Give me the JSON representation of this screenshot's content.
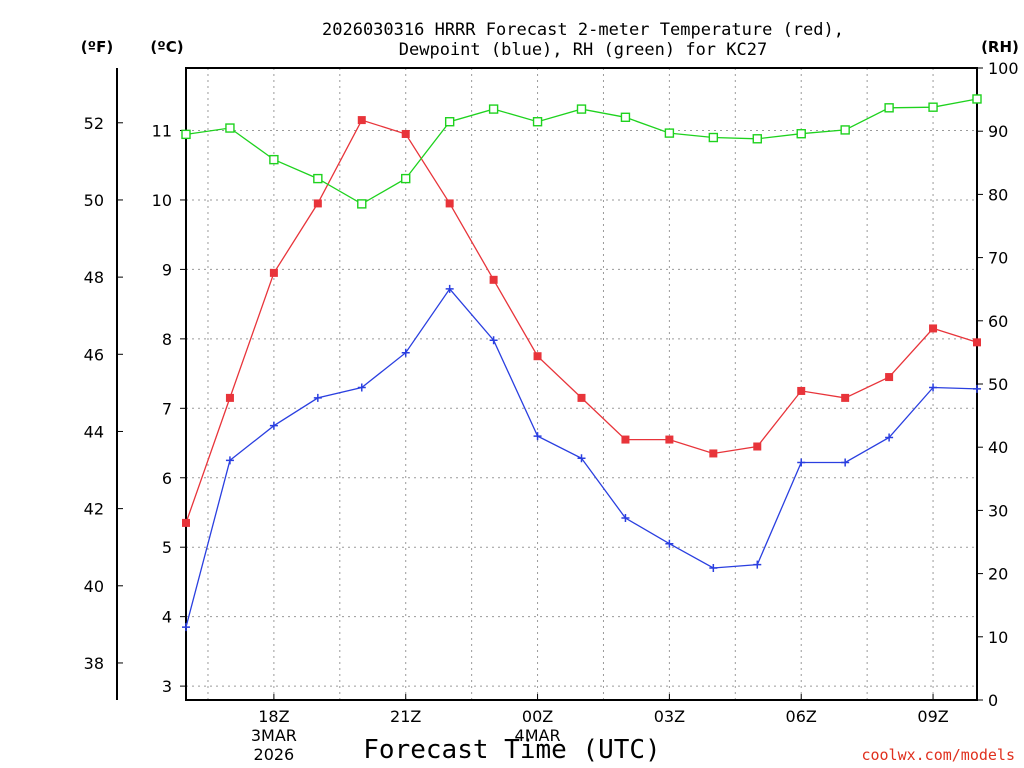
{
  "chart_data": {
    "type": "line",
    "title_line1": "2026030316 HRRR Forecast 2-meter Temperature (red),",
    "title_line2": "Dewpoint (blue), RH (green) for KC27",
    "xlabel": "Forecast Time (UTC)",
    "credit": "coolwx.com/models",
    "unit_f": "(ºF)",
    "unit_c": "(ºC)",
    "unit_rh": "(RH)",
    "x_hours": [
      16,
      17,
      18,
      19,
      20,
      21,
      22,
      23,
      24,
      25,
      26,
      27,
      28,
      29,
      30,
      31,
      32,
      33,
      34
    ],
    "x_range": [
      16,
      34
    ],
    "ylim_c": [
      2.8,
      11.9
    ],
    "ylim_rh": [
      0,
      100
    ],
    "fahrenheit_ticks": [
      "38",
      "40",
      "42",
      "44",
      "46",
      "48",
      "50",
      "52"
    ],
    "fahrenheit_values": [
      38,
      40,
      42,
      44,
      46,
      48,
      50,
      52
    ],
    "celsius_ticks": [
      "3",
      "4",
      "5",
      "6",
      "7",
      "8",
      "9",
      "10",
      "11"
    ],
    "celsius_values": [
      3,
      4,
      5,
      6,
      7,
      8,
      9,
      10,
      11
    ],
    "rh_ticks": [
      "0",
      "10",
      "20",
      "30",
      "40",
      "50",
      "60",
      "70",
      "80",
      "90",
      "100"
    ],
    "rh_values": [
      0,
      10,
      20,
      30,
      40,
      50,
      60,
      70,
      80,
      90,
      100
    ],
    "x_ticks": [
      {
        "hour": 18,
        "lines": [
          "18Z",
          "3MAR",
          "2026"
        ]
      },
      {
        "hour": 21,
        "lines": [
          "21Z"
        ]
      },
      {
        "hour": 24,
        "lines": [
          "00Z",
          "4MAR"
        ]
      },
      {
        "hour": 27,
        "lines": [
          "03Z"
        ]
      },
      {
        "hour": 30,
        "lines": [
          "06Z"
        ]
      },
      {
        "hour": 33,
        "lines": [
          "09Z"
        ]
      }
    ],
    "series": [
      {
        "name": "Temperature",
        "unit": "C",
        "color": "#e8343a",
        "marker": "filled-square",
        "values": [
          5.35,
          7.15,
          8.95,
          9.95,
          11.15,
          10.95,
          9.95,
          8.85,
          7.75,
          7.15,
          6.55,
          6.55,
          6.35,
          6.45,
          7.25,
          7.15,
          7.45,
          8.15,
          7.95
        ]
      },
      {
        "name": "Dewpoint",
        "unit": "C",
        "color": "#2a3fe0",
        "marker": "plus",
        "values": [
          3.85,
          6.25,
          6.75,
          7.15,
          7.3,
          7.8,
          8.72,
          7.98,
          6.6,
          6.28,
          5.42,
          5.05,
          4.7,
          4.75,
          6.22,
          6.22,
          6.58,
          7.3,
          7.28
        ]
      },
      {
        "name": "RH",
        "unit": "%",
        "color": "#1ed21e",
        "marker": "open-square",
        "values": [
          89.5,
          90.5,
          85.5,
          82.5,
          78.5,
          82.5,
          91.5,
          93.5,
          91.5,
          93.5,
          92.2,
          89.7,
          89.0,
          88.8,
          89.6,
          90.2,
          93.7,
          93.8,
          95.1
        ]
      }
    ]
  }
}
